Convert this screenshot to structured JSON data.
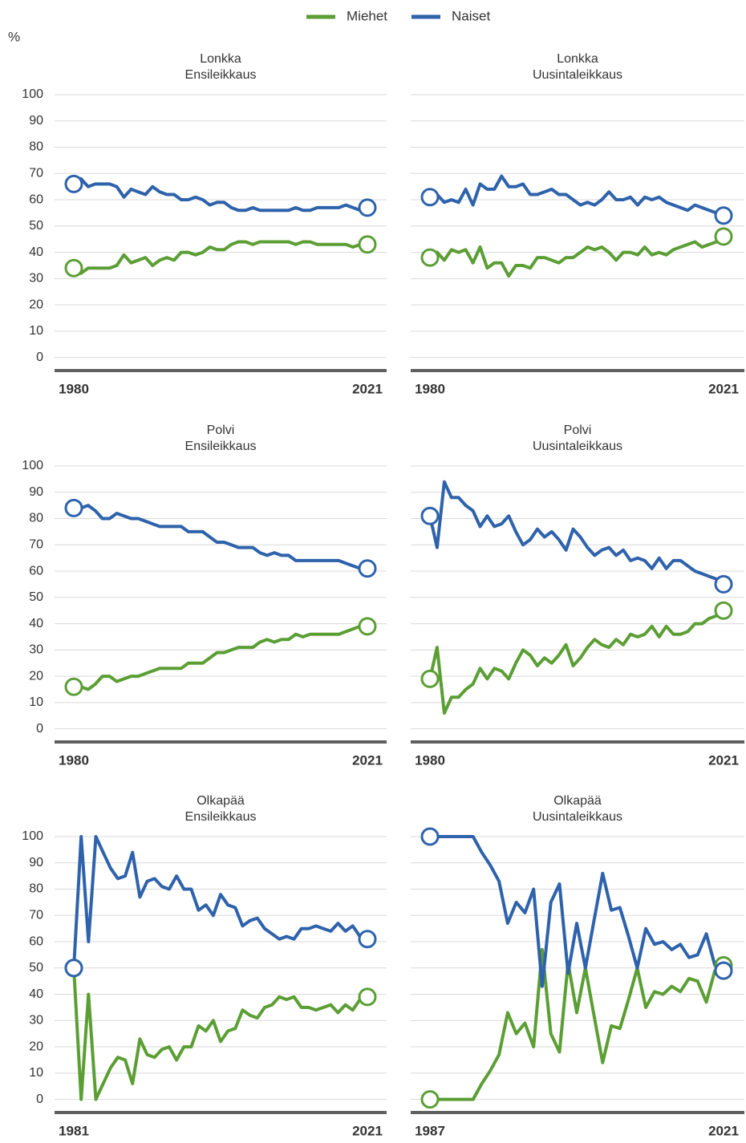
{
  "chart_data": [
    {
      "type": "line",
      "title": "Lonkka",
      "subtitle": "Ensileikkaus",
      "ylabel": "%",
      "x": [
        1980,
        1981,
        1982,
        1983,
        1984,
        1985,
        1986,
        1987,
        1988,
        1989,
        1990,
        1991,
        1992,
        1993,
        1994,
        1995,
        1996,
        1997,
        1998,
        1999,
        2000,
        2001,
        2002,
        2003,
        2004,
        2005,
        2006,
        2007,
        2008,
        2009,
        2010,
        2011,
        2012,
        2013,
        2014,
        2015,
        2016,
        2017,
        2018,
        2019,
        2020,
        2021
      ],
      "series": [
        {
          "name": "Miehet",
          "color": "#5b9e34",
          "values": [
            34,
            32,
            34,
            34,
            34,
            34,
            35,
            39,
            36,
            37,
            38,
            35,
            37,
            38,
            37,
            40,
            40,
            39,
            40,
            42,
            41,
            41,
            43,
            44,
            44,
            43,
            44,
            44,
            44,
            44,
            44,
            43,
            44,
            44,
            43,
            43,
            43,
            43,
            43,
            42,
            43,
            43
          ]
        },
        {
          "name": "Naiset",
          "color": "#2e62ab",
          "values": [
            66,
            68,
            65,
            66,
            66,
            66,
            65,
            61,
            64,
            63,
            62,
            65,
            63,
            62,
            62,
            60,
            60,
            61,
            60,
            58,
            59,
            59,
            57,
            56,
            56,
            57,
            56,
            56,
            56,
            56,
            56,
            57,
            56,
            56,
            57,
            57,
            57,
            57,
            58,
            57,
            56,
            57
          ]
        }
      ],
      "xlim": [
        1980,
        2021
      ],
      "xticks": [
        1980,
        2021
      ],
      "ylim": [
        -5,
        100
      ],
      "yticks": [
        0,
        10,
        20,
        30,
        40,
        50,
        60,
        70,
        80,
        90,
        100
      ],
      "grid": true
    },
    {
      "type": "line",
      "title": "Lonkka",
      "subtitle": "Uusintaleikkaus",
      "x": [
        1980,
        1981,
        1982,
        1983,
        1984,
        1985,
        1986,
        1987,
        1988,
        1989,
        1990,
        1991,
        1992,
        1993,
        1994,
        1995,
        1996,
        1997,
        1998,
        1999,
        2000,
        2001,
        2002,
        2003,
        2004,
        2005,
        2006,
        2007,
        2008,
        2009,
        2010,
        2011,
        2012,
        2013,
        2014,
        2015,
        2016,
        2017,
        2018,
        2019,
        2020,
        2021
      ],
      "series": [
        {
          "color": "#5b9e34",
          "values": [
            38,
            40,
            37,
            41,
            40,
            41,
            36,
            42,
            34,
            36,
            36,
            31,
            35,
            35,
            34,
            38,
            38,
            37,
            36,
            38,
            38,
            40,
            42,
            41,
            42,
            40,
            37,
            40,
            40,
            39,
            42,
            39,
            40,
            39,
            41,
            42,
            43,
            44,
            42,
            43,
            44,
            46
          ]
        },
        {
          "color": "#2e62ab",
          "values": [
            61,
            62,
            59,
            60,
            59,
            64,
            58,
            66,
            64,
            64,
            69,
            65,
            65,
            66,
            62,
            62,
            63,
            64,
            62,
            62,
            60,
            58,
            59,
            58,
            60,
            63,
            60,
            60,
            61,
            58,
            61,
            60,
            61,
            59,
            58,
            57,
            56,
            58,
            57,
            56,
            55,
            54
          ]
        }
      ],
      "xlim": [
        1980,
        2021
      ],
      "xticks": [
        1980,
        2021
      ],
      "ylim": [
        -5,
        100
      ],
      "yticks": [
        0,
        10,
        20,
        30,
        40,
        50,
        60,
        70,
        80,
        90,
        100
      ],
      "grid": true
    },
    {
      "type": "line",
      "title": "Polvi",
      "subtitle": "Ensileikkaus",
      "x": [
        1980,
        1981,
        1982,
        1983,
        1984,
        1985,
        1986,
        1987,
        1988,
        1989,
        1990,
        1991,
        1992,
        1993,
        1994,
        1995,
        1996,
        1997,
        1998,
        1999,
        2000,
        2001,
        2002,
        2003,
        2004,
        2005,
        2006,
        2007,
        2008,
        2009,
        2010,
        2011,
        2012,
        2013,
        2014,
        2015,
        2016,
        2017,
        2018,
        2019,
        2020,
        2021
      ],
      "series": [
        {
          "color": "#5b9e34",
          "values": [
            16,
            16,
            15,
            17,
            20,
            20,
            18,
            19,
            20,
            20,
            21,
            22,
            23,
            23,
            23,
            23,
            25,
            25,
            25,
            27,
            29,
            29,
            30,
            31,
            31,
            31,
            33,
            34,
            33,
            34,
            34,
            36,
            35,
            36,
            36,
            36,
            36,
            36,
            37,
            38,
            39,
            39
          ]
        },
        {
          "color": "#2e62ab",
          "values": [
            84,
            84,
            85,
            83,
            80,
            80,
            82,
            81,
            80,
            80,
            79,
            78,
            77,
            77,
            77,
            77,
            75,
            75,
            75,
            73,
            71,
            71,
            70,
            69,
            69,
            69,
            67,
            66,
            67,
            66,
            66,
            64,
            64,
            64,
            64,
            64,
            64,
            64,
            63,
            62,
            61,
            61
          ]
        }
      ],
      "xlim": [
        1980,
        2021
      ],
      "xticks": [
        1980,
        2021
      ],
      "ylim": [
        -5,
        100
      ],
      "yticks": [
        0,
        10,
        20,
        30,
        40,
        50,
        60,
        70,
        80,
        90,
        100
      ],
      "grid": true
    },
    {
      "type": "line",
      "title": "Polvi",
      "subtitle": "Uusintaleikkaus",
      "x": [
        1980,
        1981,
        1982,
        1983,
        1984,
        1985,
        1986,
        1987,
        1988,
        1989,
        1990,
        1991,
        1992,
        1993,
        1994,
        1995,
        1996,
        1997,
        1998,
        1999,
        2000,
        2001,
        2002,
        2003,
        2004,
        2005,
        2006,
        2007,
        2008,
        2009,
        2010,
        2011,
        2012,
        2013,
        2014,
        2015,
        2016,
        2017,
        2018,
        2019,
        2020,
        2021
      ],
      "series": [
        {
          "color": "#5b9e34",
          "values": [
            19,
            31,
            6,
            12,
            12,
            15,
            17,
            23,
            19,
            23,
            22,
            19,
            25,
            30,
            28,
            24,
            27,
            25,
            28,
            32,
            24,
            27,
            31,
            34,
            32,
            31,
            34,
            32,
            36,
            35,
            36,
            39,
            35,
            39,
            36,
            36,
            37,
            40,
            40,
            42,
            43,
            45
          ]
        },
        {
          "color": "#2e62ab",
          "values": [
            81,
            69,
            94,
            88,
            88,
            85,
            83,
            77,
            81,
            77,
            78,
            81,
            75,
            70,
            72,
            76,
            73,
            75,
            72,
            68,
            76,
            73,
            69,
            66,
            68,
            69,
            66,
            68,
            64,
            65,
            64,
            61,
            65,
            61,
            64,
            64,
            62,
            60,
            59,
            58,
            57,
            55
          ]
        }
      ],
      "xlim": [
        1980,
        2021
      ],
      "xticks": [
        1980,
        2021
      ],
      "ylim": [
        -5,
        100
      ],
      "yticks": [
        0,
        10,
        20,
        30,
        40,
        50,
        60,
        70,
        80,
        90,
        100
      ],
      "grid": true
    },
    {
      "type": "line",
      "title": "Olkapää",
      "subtitle": "Ensileikkaus",
      "x": [
        1981,
        1982,
        1983,
        1984,
        1985,
        1986,
        1987,
        1988,
        1989,
        1990,
        1991,
        1992,
        1993,
        1994,
        1995,
        1996,
        1997,
        1998,
        1999,
        2000,
        2001,
        2002,
        2003,
        2004,
        2005,
        2006,
        2007,
        2008,
        2009,
        2010,
        2011,
        2012,
        2013,
        2014,
        2015,
        2016,
        2017,
        2018,
        2019,
        2020,
        2021
      ],
      "series": [
        {
          "color": "#5b9e34",
          "values": [
            50,
            0,
            40,
            0,
            6,
            12,
            16,
            15,
            6,
            23,
            17,
            16,
            19,
            20,
            15,
            20,
            20,
            28,
            26,
            30,
            22,
            26,
            27,
            34,
            32,
            31,
            35,
            36,
            39,
            38,
            39,
            35,
            35,
            34,
            35,
            36,
            33,
            36,
            34,
            38,
            39
          ]
        },
        {
          "color": "#2e62ab",
          "values": [
            50,
            100,
            60,
            100,
            94,
            88,
            84,
            85,
            94,
            77,
            83,
            84,
            81,
            80,
            85,
            80,
            80,
            72,
            74,
            70,
            78,
            74,
            73,
            66,
            68,
            69,
            65,
            63,
            61,
            62,
            61,
            65,
            65,
            66,
            65,
            64,
            67,
            64,
            66,
            62,
            61
          ]
        }
      ],
      "xlim": [
        1981,
        2021
      ],
      "xticks": [
        1981,
        2021
      ],
      "ylim": [
        -5,
        100
      ],
      "yticks": [
        0,
        10,
        20,
        30,
        40,
        50,
        60,
        70,
        80,
        90,
        100
      ],
      "grid": true
    },
    {
      "type": "line",
      "title": "Olkapää",
      "subtitle": "Uusintaleikkaus",
      "x": [
        1987,
        1988,
        1989,
        1990,
        1991,
        1992,
        1993,
        1994,
        1995,
        1996,
        1997,
        1998,
        1999,
        2000,
        2001,
        2002,
        2003,
        2004,
        2005,
        2006,
        2007,
        2008,
        2009,
        2010,
        2011,
        2012,
        2013,
        2014,
        2015,
        2016,
        2017,
        2018,
        2019,
        2020,
        2021
      ],
      "series": [
        {
          "color": "#5b9e34",
          "values": [
            0,
            0,
            0,
            0,
            0,
            0,
            6,
            11,
            17,
            33,
            25,
            29,
            20,
            57,
            25,
            18,
            52,
            33,
            50,
            32,
            14,
            28,
            27,
            38,
            50,
            35,
            41,
            40,
            43,
            41,
            46,
            45,
            37,
            49,
            51
          ]
        },
        {
          "color": "#2e62ab",
          "values": [
            100,
            100,
            100,
            100,
            100,
            100,
            94,
            89,
            83,
            67,
            75,
            71,
            80,
            43,
            75,
            82,
            48,
            67,
            50,
            68,
            86,
            72,
            73,
            62,
            50,
            65,
            59,
            60,
            57,
            59,
            54,
            55,
            63,
            51,
            49
          ]
        }
      ],
      "xlim": [
        1987,
        2021
      ],
      "xticks": [
        1987,
        2021
      ],
      "ylim": [
        -5,
        100
      ],
      "yticks": [
        0,
        10,
        20,
        30,
        40,
        50,
        60,
        70,
        80,
        90,
        100
      ],
      "grid": true
    }
  ]
}
